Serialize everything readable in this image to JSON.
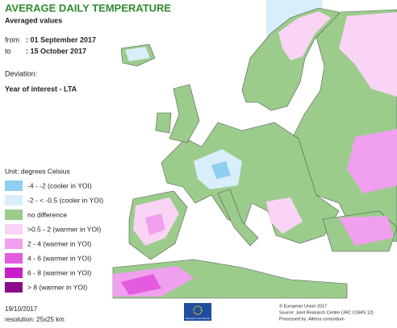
{
  "header": {
    "title": "AVERAGE DAILY TEMPERATURE",
    "subtitle": "Averaged values"
  },
  "period": {
    "from_label": "from",
    "from": ": 01 September 2017",
    "to_label": "to",
    "to": ": 15 October 2017"
  },
  "deviation": {
    "label": "Deviation:",
    "value": "Year of interest - LTA"
  },
  "legend": {
    "unit": "Unit: degrees Celsius",
    "items": [
      {
        "label": "-4 - -2 (cooler in YOI)",
        "color": "#8ecfef"
      },
      {
        "label": "-2 - < -0.5 (cooler in YOI)",
        "color": "#d8eefa"
      },
      {
        "label": "no difference",
        "color": "#9ccc8c"
      },
      {
        "label": ">0.5 - 2 (warmer in YOI)",
        "color": "#f9d4f4"
      },
      {
        "label": "2 - 4 (warmer in YOI)",
        "color": "#f0a0ee"
      },
      {
        "label": "4 - 6 (warmer in YOI)",
        "color": "#e55be0"
      },
      {
        "label": "6 - 8 (warmer in YOI)",
        "color": "#c81cc8"
      },
      {
        "label": "> 8 (warmer in YOI)",
        "color": "#8a0a8a"
      }
    ]
  },
  "footer": {
    "date": "19/10/2017",
    "resolution": "resolution: 25x25 km",
    "logo_text": "European Commission",
    "copyright": "© European Union 2017",
    "source": "Source: Joint Research Centre (JRC CGMS 12)",
    "processed": "Processed by: Alterra consortium"
  }
}
